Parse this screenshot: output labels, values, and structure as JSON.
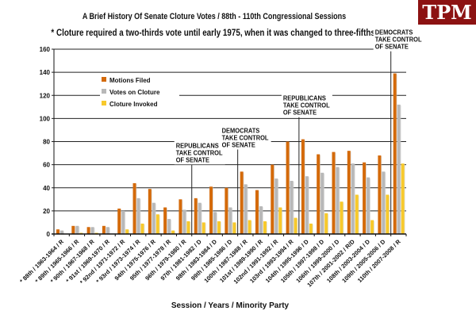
{
  "logo": "TPM",
  "chart_data": {
    "type": "bar",
    "title": "A Brief History Of Senate Cloture Votes / 88th - 110th Congressional Sessions",
    "subtitle": "* Cloture required a two-thirds vote until early 1975, when it was changed to three-fifths.",
    "xlabel": "Session / Years / Minority Party",
    "ylabel": "",
    "ylim": [
      0,
      160
    ],
    "yticks": [
      0,
      20,
      40,
      60,
      80,
      100,
      120,
      140,
      160
    ],
    "grid": true,
    "legend_position": "top-left",
    "categories": [
      "* 88th / 1963-1964 / R",
      "* 89th / 1965-1966 / R",
      "* 90th / 1967-1968 / R",
      "* 91st / 1969-1970 / R",
      "* 92nd / 1971-1972 / R",
      "* 93rd / 1973-1974 / R",
      "94th / 1975-1976 / R",
      "95th / 1977-1978 / R",
      "96th / 1979-1980 / R",
      "97th / 1981-1982 / D",
      "98th / 1983-1984 / D",
      "99th / 1985-1986 / D",
      "100th / 1987-1988 / R",
      "101st / 1989-1990 / R",
      "102nd / 1991-1992 / R",
      "103rd / 1993-1994 / R",
      "104th / 1995-1996 / D",
      "105th / 1997-1998 / D",
      "106th / 1999-2000 / D",
      "107th / 2001-2002 / R/D",
      "108th / 2003-2004 / D",
      "109th / 2005-2006 / D",
      "110th / 2007-2008 / R"
    ],
    "series": [
      {
        "name": "Motions Filed",
        "color": "#d46a0a",
        "values": [
          4,
          7,
          6,
          7,
          22,
          44,
          39,
          23,
          30,
          31,
          41,
          40,
          54,
          38,
          60,
          80,
          82,
          69,
          71,
          72,
          62,
          68,
          139
        ]
      },
      {
        "name": "Votes on Cloture",
        "color": "#b8b8b8",
        "values": [
          3,
          7,
          6,
          6,
          20,
          31,
          27,
          13,
          21,
          27,
          19,
          23,
          43,
          24,
          48,
          46,
          50,
          53,
          58,
          61,
          49,
          54,
          112
        ]
      },
      {
        "name": "Cloture Invoked",
        "color": "#f7c92c",
        "values": [
          0,
          1,
          1,
          0,
          4,
          9,
          17,
          3,
          11,
          10,
          11,
          10,
          12,
          11,
          23,
          14,
          9,
          18,
          28,
          34,
          12,
          34,
          61
        ]
      }
    ],
    "annotations": [
      {
        "text": [
          "REPUBLICANS",
          "TAKE CONTROL",
          "OF SENATE"
        ],
        "after_index": 8
      },
      {
        "text": [
          "DEMOCRATS",
          "TAKE CONTROL",
          "OF SENATE"
        ],
        "after_index": 11
      },
      {
        "text": [
          "REPUBLICANS",
          "TAKE CONTROL",
          "OF SENATE"
        ],
        "after_index": 15
      },
      {
        "text": [
          "DEMOCRATS",
          "TAKE CONTROL",
          "OF SENATE"
        ],
        "after_index": 21
      }
    ]
  }
}
